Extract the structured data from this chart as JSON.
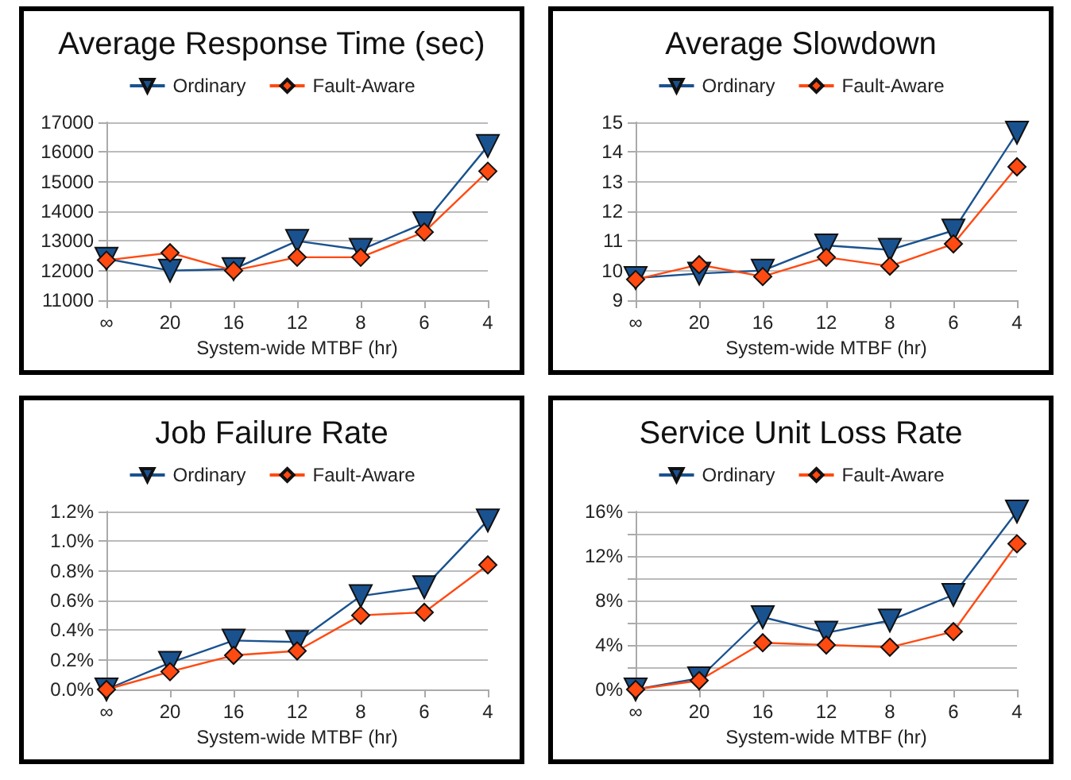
{
  "chart_data": [
    {
      "type": "line",
      "title": "Average Response Time (sec)",
      "xlabel": "System-wide MTBF (hr)",
      "categories": [
        "∞",
        "20",
        "16",
        "12",
        "8",
        "6",
        "4"
      ],
      "series": [
        {
          "name": "Ordinary",
          "color": "#1a528f",
          "marker": "triangle",
          "values": [
            12400,
            12000,
            12050,
            13000,
            12700,
            13600,
            16200
          ]
        },
        {
          "name": "Fault-Aware",
          "color": "#ff4a12",
          "marker": "diamond",
          "values": [
            12350,
            12600,
            12000,
            12450,
            12450,
            13300,
            15350
          ]
        }
      ],
      "ylim": [
        11000,
        17000
      ],
      "yticks": [
        11000,
        12000,
        13000,
        14000,
        15000,
        16000,
        17000
      ],
      "grid": "y",
      "legend": "top"
    },
    {
      "type": "line",
      "title": "Average Slowdown",
      "xlabel": "System-wide MTBF (hr)",
      "categories": [
        "∞",
        "20",
        "16",
        "12",
        "8",
        "6",
        "4"
      ],
      "series": [
        {
          "name": "Ordinary",
          "color": "#1a528f",
          "marker": "triangle",
          "values": [
            9.75,
            9.9,
            10.0,
            10.85,
            10.7,
            11.35,
            14.65
          ]
        },
        {
          "name": "Fault-Aware",
          "color": "#ff4a12",
          "marker": "diamond",
          "values": [
            9.7,
            10.2,
            9.8,
            10.45,
            10.15,
            10.9,
            13.5
          ]
        }
      ],
      "ylim": [
        9,
        15
      ],
      "yticks": [
        9,
        10,
        11,
        12,
        13,
        14,
        15
      ],
      "grid": "y",
      "legend": "top"
    },
    {
      "type": "line",
      "title": "Job Failure Rate",
      "xlabel": "System-wide MTBF (hr)",
      "categories": [
        "∞",
        "20",
        "16",
        "12",
        "8",
        "6",
        "4"
      ],
      "series": [
        {
          "name": "Ordinary",
          "color": "#1a528f",
          "marker": "triangle",
          "values": [
            0.0,
            0.18,
            0.33,
            0.32,
            0.63,
            0.69,
            1.14
          ]
        },
        {
          "name": "Fault-Aware",
          "color": "#ff4a12",
          "marker": "diamond",
          "values": [
            0.0,
            0.12,
            0.23,
            0.26,
            0.5,
            0.52,
            0.84
          ]
        }
      ],
      "ylim": [
        0,
        1.2
      ],
      "yticks": [
        {
          "value": 0,
          "label": "0.0%"
        },
        {
          "value": 0.2,
          "label": "0.2%"
        },
        {
          "value": 0.4,
          "label": "0.4%"
        },
        {
          "value": 0.6,
          "label": "0.6%"
        },
        {
          "value": 0.8,
          "label": "0.8%"
        },
        {
          "value": 1.0,
          "label": "1.0%"
        },
        {
          "value": 1.2,
          "label": "1.2%"
        }
      ],
      "grid": "y",
      "legend": "top"
    },
    {
      "type": "line",
      "title": "Service Unit Loss Rate",
      "xlabel": "System-wide MTBF (hr)",
      "categories": [
        "∞",
        "20",
        "16",
        "12",
        "8",
        "6",
        "4"
      ],
      "series": [
        {
          "name": "Ordinary",
          "color": "#1a528f",
          "marker": "triangle",
          "values": [
            0,
            1.0,
            6.5,
            5.1,
            6.2,
            8.5,
            16.0
          ]
        },
        {
          "name": "Fault-Aware",
          "color": "#ff4a12",
          "marker": "diamond",
          "values": [
            0,
            0.8,
            4.2,
            4.0,
            3.8,
            5.2,
            13.1
          ]
        }
      ],
      "ylim": [
        0,
        16
      ],
      "yticks": [
        {
          "value": 0,
          "label": "0%"
        },
        {
          "value": 2,
          "label": null
        },
        {
          "value": 4,
          "label": "4%"
        },
        {
          "value": 6,
          "label": null
        },
        {
          "value": 8,
          "label": "8%"
        },
        {
          "value": 10,
          "label": null
        },
        {
          "value": 12,
          "label": "12%"
        },
        {
          "value": 14,
          "label": null
        },
        {
          "value": 16,
          "label": "16%"
        }
      ],
      "grid": "y",
      "legend": "top"
    }
  ]
}
